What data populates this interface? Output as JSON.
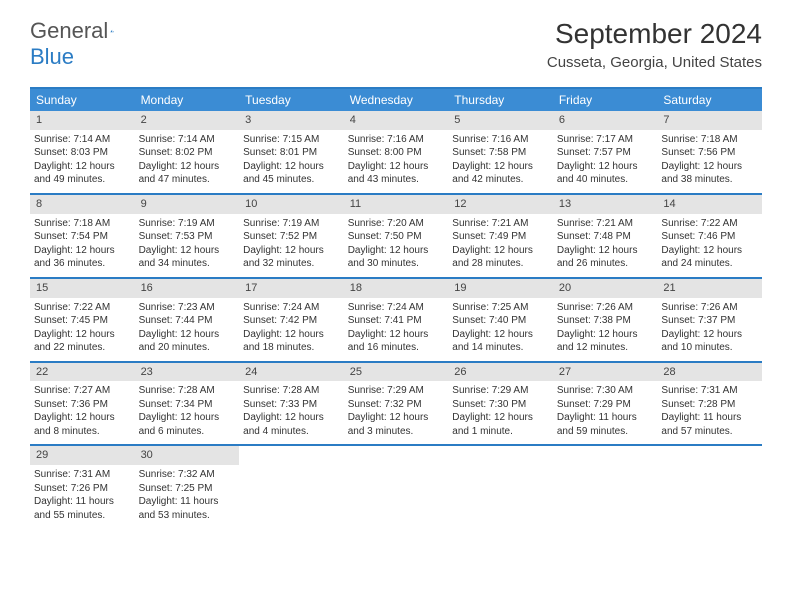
{
  "logo": {
    "part1": "General",
    "part2": "Blue"
  },
  "title": "September 2024",
  "location": "Cusseta, Georgia, United States",
  "colors": {
    "header_bg": "#3b8cd4",
    "border": "#2b7cc4",
    "daynum_bg": "#e4e4e4",
    "text": "#333333"
  },
  "day_names": [
    "Sunday",
    "Monday",
    "Tuesday",
    "Wednesday",
    "Thursday",
    "Friday",
    "Saturday"
  ],
  "weeks": [
    [
      {
        "n": "1",
        "sr": "7:14 AM",
        "ss": "8:03 PM",
        "dl1": "Daylight: 12 hours",
        "dl2": "and 49 minutes."
      },
      {
        "n": "2",
        "sr": "7:14 AM",
        "ss": "8:02 PM",
        "dl1": "Daylight: 12 hours",
        "dl2": "and 47 minutes."
      },
      {
        "n": "3",
        "sr": "7:15 AM",
        "ss": "8:01 PM",
        "dl1": "Daylight: 12 hours",
        "dl2": "and 45 minutes."
      },
      {
        "n": "4",
        "sr": "7:16 AM",
        "ss": "8:00 PM",
        "dl1": "Daylight: 12 hours",
        "dl2": "and 43 minutes."
      },
      {
        "n": "5",
        "sr": "7:16 AM",
        "ss": "7:58 PM",
        "dl1": "Daylight: 12 hours",
        "dl2": "and 42 minutes."
      },
      {
        "n": "6",
        "sr": "7:17 AM",
        "ss": "7:57 PM",
        "dl1": "Daylight: 12 hours",
        "dl2": "and 40 minutes."
      },
      {
        "n": "7",
        "sr": "7:18 AM",
        "ss": "7:56 PM",
        "dl1": "Daylight: 12 hours",
        "dl2": "and 38 minutes."
      }
    ],
    [
      {
        "n": "8",
        "sr": "7:18 AM",
        "ss": "7:54 PM",
        "dl1": "Daylight: 12 hours",
        "dl2": "and 36 minutes."
      },
      {
        "n": "9",
        "sr": "7:19 AM",
        "ss": "7:53 PM",
        "dl1": "Daylight: 12 hours",
        "dl2": "and 34 minutes."
      },
      {
        "n": "10",
        "sr": "7:19 AM",
        "ss": "7:52 PM",
        "dl1": "Daylight: 12 hours",
        "dl2": "and 32 minutes."
      },
      {
        "n": "11",
        "sr": "7:20 AM",
        "ss": "7:50 PM",
        "dl1": "Daylight: 12 hours",
        "dl2": "and 30 minutes."
      },
      {
        "n": "12",
        "sr": "7:21 AM",
        "ss": "7:49 PM",
        "dl1": "Daylight: 12 hours",
        "dl2": "and 28 minutes."
      },
      {
        "n": "13",
        "sr": "7:21 AM",
        "ss": "7:48 PM",
        "dl1": "Daylight: 12 hours",
        "dl2": "and 26 minutes."
      },
      {
        "n": "14",
        "sr": "7:22 AM",
        "ss": "7:46 PM",
        "dl1": "Daylight: 12 hours",
        "dl2": "and 24 minutes."
      }
    ],
    [
      {
        "n": "15",
        "sr": "7:22 AM",
        "ss": "7:45 PM",
        "dl1": "Daylight: 12 hours",
        "dl2": "and 22 minutes."
      },
      {
        "n": "16",
        "sr": "7:23 AM",
        "ss": "7:44 PM",
        "dl1": "Daylight: 12 hours",
        "dl2": "and 20 minutes."
      },
      {
        "n": "17",
        "sr": "7:24 AM",
        "ss": "7:42 PM",
        "dl1": "Daylight: 12 hours",
        "dl2": "and 18 minutes."
      },
      {
        "n": "18",
        "sr": "7:24 AM",
        "ss": "7:41 PM",
        "dl1": "Daylight: 12 hours",
        "dl2": "and 16 minutes."
      },
      {
        "n": "19",
        "sr": "7:25 AM",
        "ss": "7:40 PM",
        "dl1": "Daylight: 12 hours",
        "dl2": "and 14 minutes."
      },
      {
        "n": "20",
        "sr": "7:26 AM",
        "ss": "7:38 PM",
        "dl1": "Daylight: 12 hours",
        "dl2": "and 12 minutes."
      },
      {
        "n": "21",
        "sr": "7:26 AM",
        "ss": "7:37 PM",
        "dl1": "Daylight: 12 hours",
        "dl2": "and 10 minutes."
      }
    ],
    [
      {
        "n": "22",
        "sr": "7:27 AM",
        "ss": "7:36 PM",
        "dl1": "Daylight: 12 hours",
        "dl2": "and 8 minutes."
      },
      {
        "n": "23",
        "sr": "7:28 AM",
        "ss": "7:34 PM",
        "dl1": "Daylight: 12 hours",
        "dl2": "and 6 minutes."
      },
      {
        "n": "24",
        "sr": "7:28 AM",
        "ss": "7:33 PM",
        "dl1": "Daylight: 12 hours",
        "dl2": "and 4 minutes."
      },
      {
        "n": "25",
        "sr": "7:29 AM",
        "ss": "7:32 PM",
        "dl1": "Daylight: 12 hours",
        "dl2": "and 3 minutes."
      },
      {
        "n": "26",
        "sr": "7:29 AM",
        "ss": "7:30 PM",
        "dl1": "Daylight: 12 hours",
        "dl2": "and 1 minute."
      },
      {
        "n": "27",
        "sr": "7:30 AM",
        "ss": "7:29 PM",
        "dl1": "Daylight: 11 hours",
        "dl2": "and 59 minutes."
      },
      {
        "n": "28",
        "sr": "7:31 AM",
        "ss": "7:28 PM",
        "dl1": "Daylight: 11 hours",
        "dl2": "and 57 minutes."
      }
    ],
    [
      {
        "n": "29",
        "sr": "7:31 AM",
        "ss": "7:26 PM",
        "dl1": "Daylight: 11 hours",
        "dl2": "and 55 minutes."
      },
      {
        "n": "30",
        "sr": "7:32 AM",
        "ss": "7:25 PM",
        "dl1": "Daylight: 11 hours",
        "dl2": "and 53 minutes."
      },
      null,
      null,
      null,
      null,
      null
    ]
  ],
  "labels": {
    "sunrise": "Sunrise:",
    "sunset": "Sunset:"
  }
}
